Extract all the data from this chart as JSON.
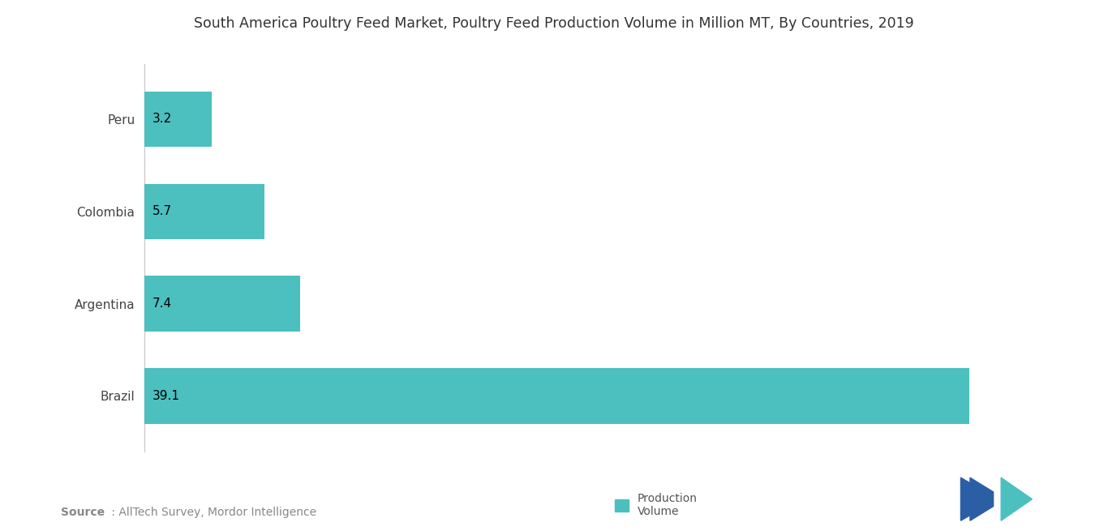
{
  "title": "South America Poultry Feed Market, Poultry Feed Production Volume in Million MT, By Countries, 2019",
  "categories": [
    "Brazil",
    "Argentina",
    "Colombia",
    "Peru"
  ],
  "values": [
    39.1,
    7.4,
    5.7,
    3.2
  ],
  "bar_color": "#4CBFBF",
  "bar_labels": [
    "39.1",
    "7.4",
    "5.7",
    "3.2"
  ],
  "legend_label": "Production\nVolume",
  "xlim": [
    0,
    42
  ],
  "background_color": "#ffffff",
  "title_fontsize": 12.5,
  "label_fontsize": 11,
  "tick_fontsize": 11,
  "source_fontsize": 10,
  "logo_m_color": "#2a5fa5",
  "logo_n_color": "#4CBFBF"
}
